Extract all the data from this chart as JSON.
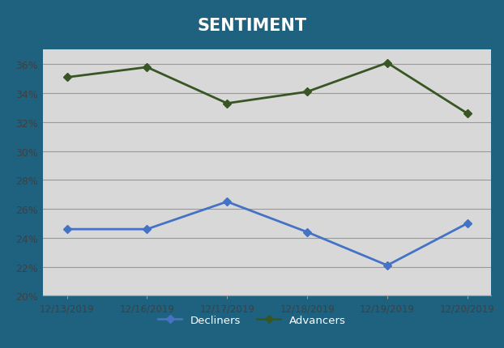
{
  "title": "SENTIMENT",
  "title_color": "#ffffff",
  "title_fontsize": 15,
  "title_fontweight": "bold",
  "background_color": "#1e6280",
  "plot_bg_color": "#d8d8d8",
  "x_labels": [
    "12/13/2019",
    "12/16/2019",
    "12/17/2019",
    "12/18/2019",
    "12/19/2019",
    "12/20/2019"
  ],
  "decliners": [
    24.6,
    24.6,
    26.5,
    24.4,
    22.1,
    25.0
  ],
  "advancers": [
    35.1,
    35.8,
    33.3,
    34.1,
    36.1,
    32.6
  ],
  "decliners_color": "#4472c4",
  "advancers_color": "#375623",
  "ylim": [
    20,
    37
  ],
  "yticks": [
    20,
    22,
    24,
    26,
    28,
    30,
    32,
    34,
    36
  ],
  "legend_label_decliners": "Decliners",
  "legend_label_advancers": "Advancers",
  "grid_color": "#999999",
  "tick_color": "#404040",
  "marker": "D",
  "marker_size": 5,
  "line_width": 2.0
}
